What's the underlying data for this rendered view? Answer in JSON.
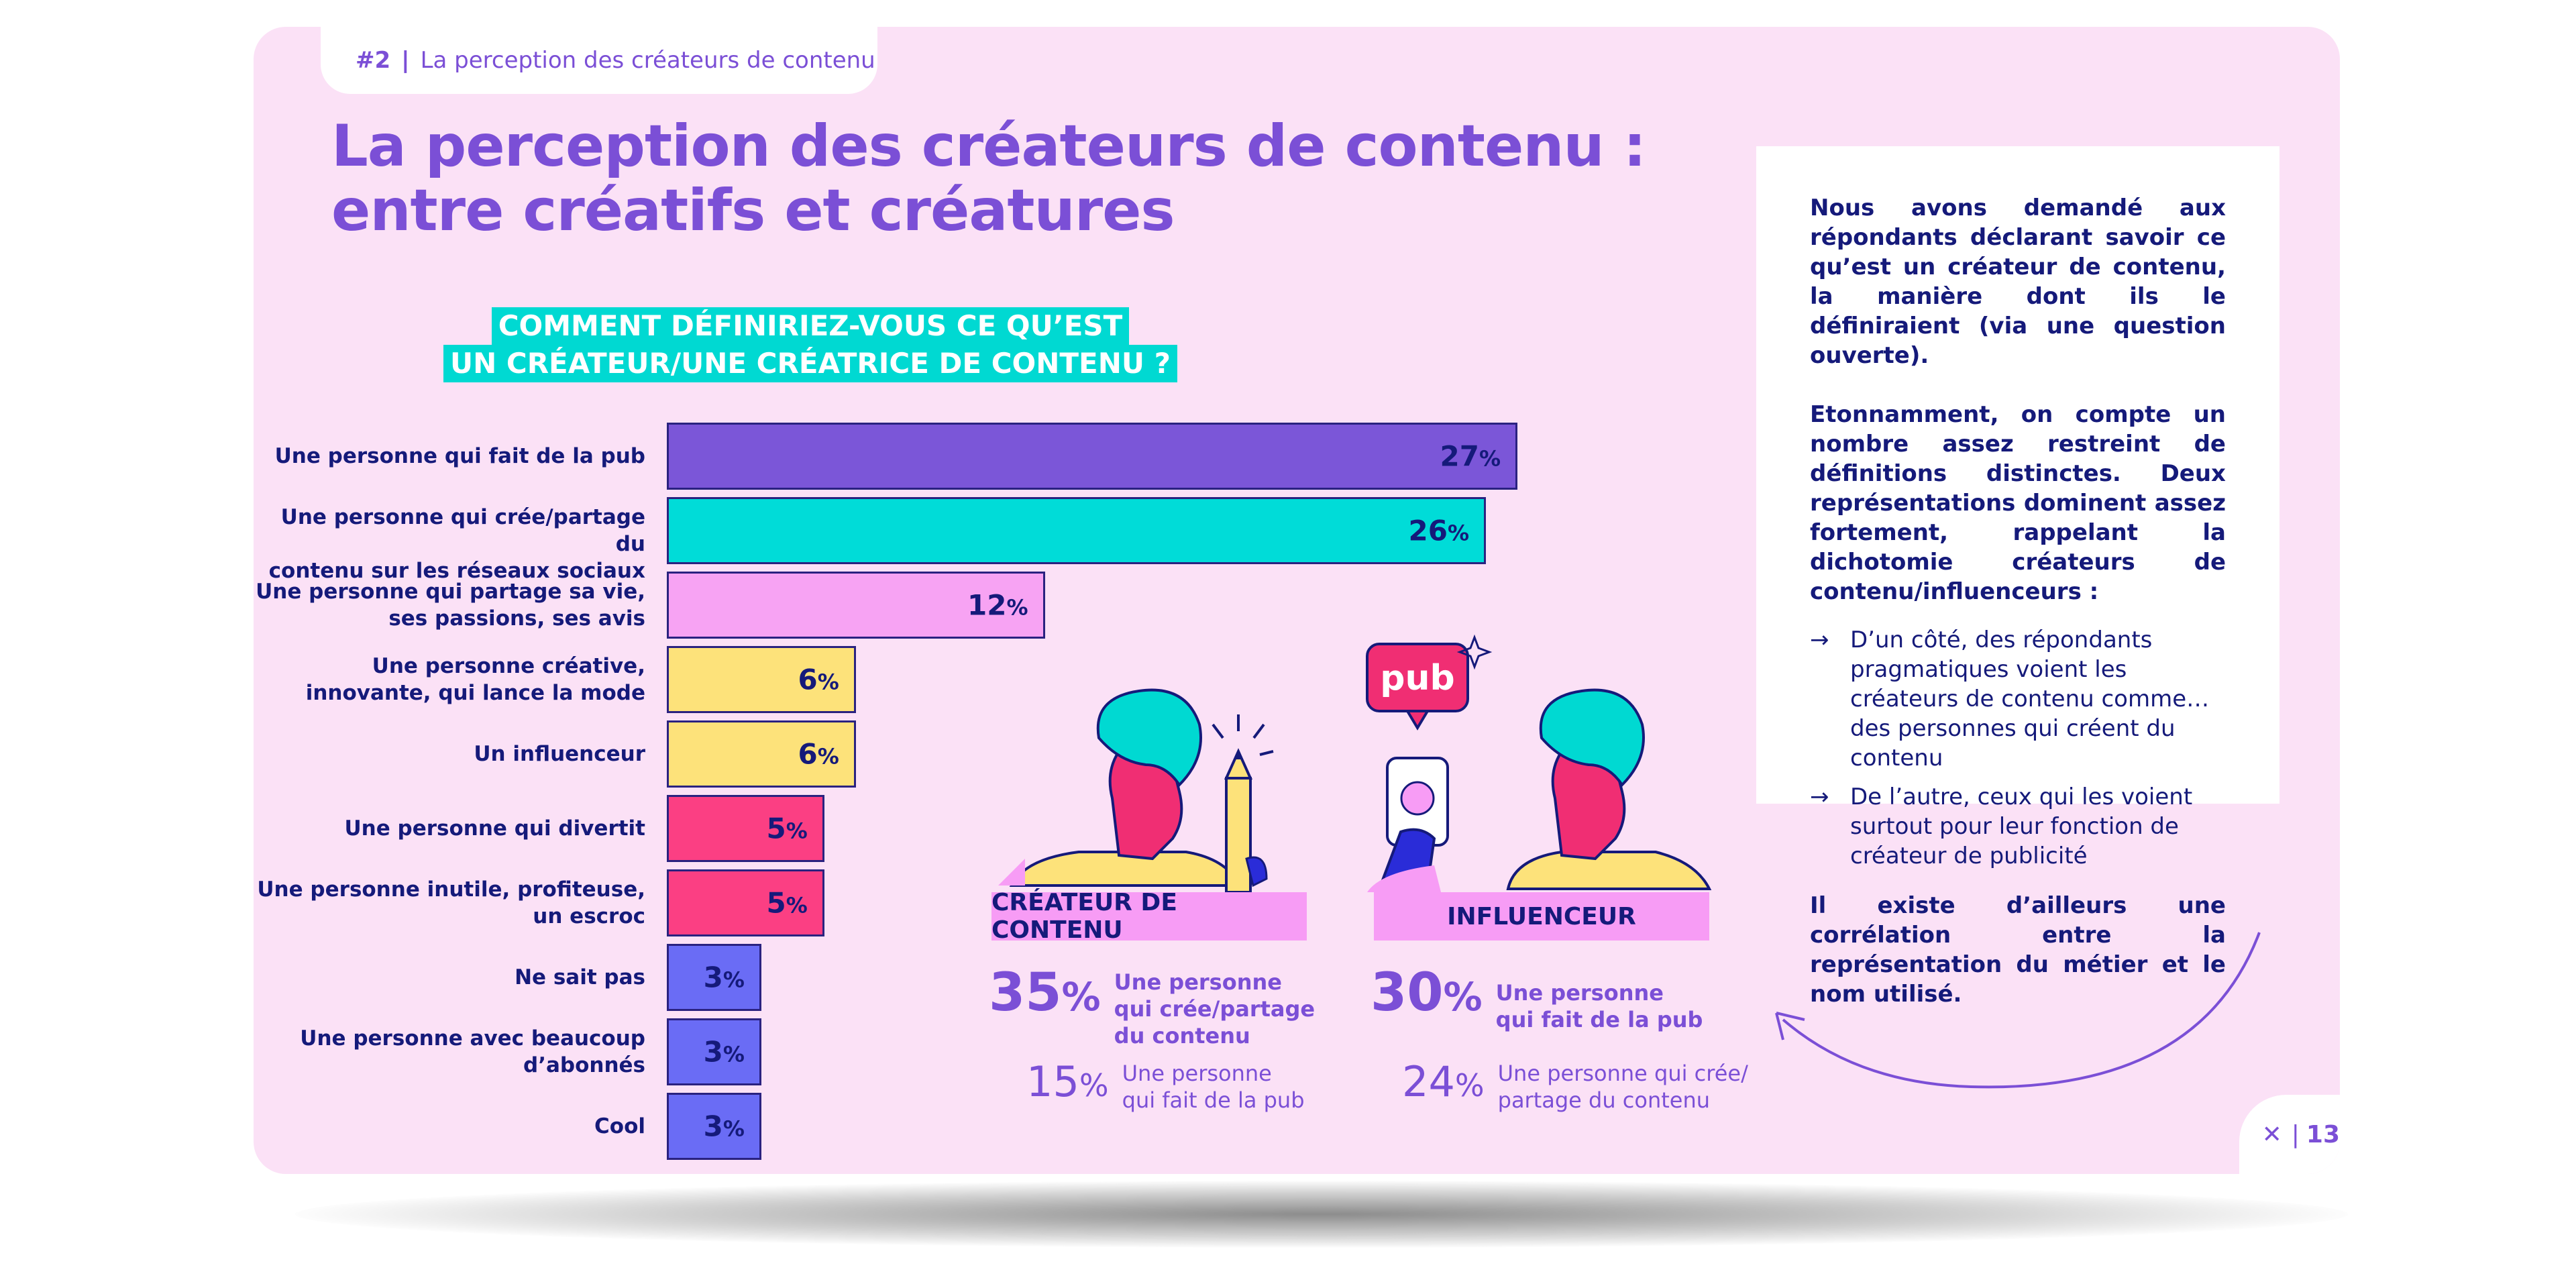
{
  "header": {
    "section_num": "#2",
    "separator": "|",
    "section_title": "La perception des créateurs de contenu"
  },
  "title_line1": "La perception des créateurs de contenu :",
  "title_line2": "entre créatifs et créatures",
  "question_line1": "COMMENT DÉFINIRIEZ-VOUS CE QU’EST",
  "question_line2": "UN CRÉATEUR/UNE CRÉATRICE DE CONTENU ?",
  "chart_data": {
    "type": "bar",
    "orientation": "horizontal",
    "categories": [
      "Une personne qui fait de la pub",
      "Une personne qui crée/partage du contenu sur les réseaux sociaux",
      "Une personne qui partage sa vie, ses passions, ses avis",
      "Une personne créative, innovante, qui lance la mode",
      "Un influenceur",
      "Une personne qui divertit",
      "Une personne inutile, profiteuse, un escroc",
      "Ne sait pas",
      "Une personne avec beaucoup d’abonnés",
      "Cool"
    ],
    "category_lines": [
      [
        "Une personne qui fait de la pub"
      ],
      [
        "Une personne qui crée/partage du",
        "contenu sur les réseaux sociaux"
      ],
      [
        "Une personne qui partage sa vie,",
        "ses passions, ses avis"
      ],
      [
        "Une personne créative,",
        "innovante, qui lance la mode"
      ],
      [
        "Un influenceur"
      ],
      [
        "Une personne qui divertit"
      ],
      [
        "Une personne inutile, profiteuse,",
        "un escroc"
      ],
      [
        "Ne sait pas"
      ],
      [
        "Une personne avec beaucoup",
        "d’abonnés"
      ],
      [
        "Cool"
      ]
    ],
    "values": [
      27,
      26,
      12,
      6,
      6,
      5,
      5,
      3,
      3,
      3
    ],
    "unit": "%",
    "colors": [
      "#7b56d8",
      "#00dcd8",
      "#f7a3f3",
      "#fde27a",
      "#fde27a",
      "#fb3f83",
      "#fb3f83",
      "#6a6cf5",
      "#6a6cf5",
      "#6a6cf5"
    ]
  },
  "creator": {
    "label": "CRÉATEUR DE CONTENU",
    "main_value": "35",
    "main_unit": "%",
    "main_text_lines": [
      "Une personne",
      "qui crée/partage",
      "du contenu"
    ],
    "secondary_value": "15",
    "secondary_unit": "%",
    "secondary_text_lines": [
      "Une personne",
      "qui fait de la pub"
    ]
  },
  "influencer": {
    "label": "INFLUENCEUR",
    "pub_sign": "pub",
    "main_value": "30",
    "main_unit": "%",
    "main_text_lines": [
      "Une personne",
      "qui fait de la pub"
    ],
    "secondary_value": "24",
    "secondary_unit": "%",
    "secondary_text_lines": [
      "Une personne qui crée/",
      "partage du contenu"
    ]
  },
  "sidebar": {
    "para1": "Nous avons demandé aux répondants déclarant savoir ce qu’est un créateur de contenu, la manière dont ils le définiraient (via une question ouverte).",
    "para2": "Etonnamment, on compte un nombre assez restreint de définitions distinctes. Deux représentations dominent assez fortement, rappelant la dichotomie créateurs de contenu/influenceurs :",
    "arrow": "→",
    "bullet1": "D’un côté, des répondants pragmatiques voient les créateurs de contenu comme… des personnes qui créent du contenu",
    "bullet2": "De l’autre, ceux qui les voient surtout pour leur fonction de créateur de publicité",
    "para3": "Il existe d’ailleurs une corrélation entre la représentation du métier et le nom utilisé."
  },
  "footer": {
    "logo": "✕",
    "separator": "|",
    "page": "13"
  }
}
